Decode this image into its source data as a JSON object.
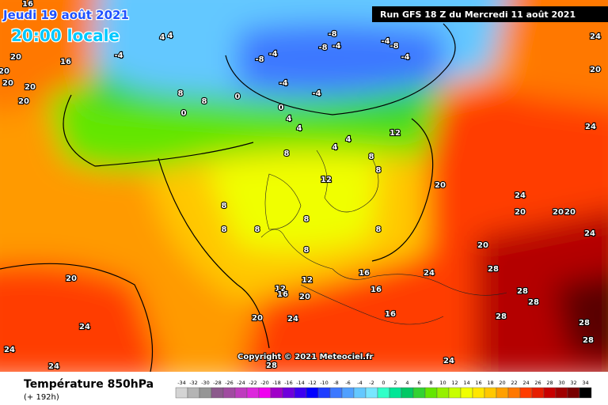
{
  "header": {
    "date": "Jeudi 19 août 2021",
    "time": "20:00 locale",
    "run": "Run GFS 18 Z du Mercredi 11 août 2021"
  },
  "footer": {
    "title": "Température 850hPa",
    "subtitle": "(+ 192h)",
    "copyright": "Copyright © 2021 Meteociel.fr"
  },
  "legend": {
    "values": [
      -34,
      -32,
      -30,
      -28,
      -26,
      -24,
      -22,
      -20,
      -18,
      -16,
      -14,
      -12,
      -10,
      -8,
      -6,
      -4,
      -2,
      0,
      2,
      4,
      6,
      8,
      10,
      12,
      14,
      16,
      18,
      20,
      22,
      24,
      26,
      28,
      30,
      32,
      34
    ],
    "colors": [
      "#d4d4d4",
      "#b4b4b4",
      "#969696",
      "#8c5a8c",
      "#a04ba0",
      "#be3cbe",
      "#dc28dc",
      "#f000f0",
      "#a000c8",
      "#6e00dc",
      "#3c00f0",
      "#0000ff",
      "#1e3cff",
      "#3c78ff",
      "#50a0ff",
      "#64c8ff",
      "#78e6ff",
      "#32ffc8",
      "#00e696",
      "#00c864",
      "#32d232",
      "#64e600",
      "#96f000",
      "#c8ff00",
      "#f0ff00",
      "#ffe600",
      "#ffc800",
      "#ffa000",
      "#ff7800",
      "#ff3c00",
      "#e61e00",
      "#c80000",
      "#a00000",
      "#780000",
      "#000000"
    ]
  },
  "contour_labels": [
    16,
    16,
    20,
    20,
    20,
    20,
    20,
    4,
    4,
    -4,
    -8,
    -4,
    -4,
    0,
    0,
    4,
    4,
    -8,
    -8,
    -4,
    -4,
    -8,
    -4,
    -4,
    8,
    8,
    0,
    8,
    4,
    4,
    12,
    8,
    12,
    8,
    8,
    8,
    8,
    8,
    8,
    8,
    12,
    16,
    16,
    16,
    20,
    20,
    24,
    24,
    28,
    28,
    28,
    28,
    28,
    28,
    28,
    24,
    20,
    24,
    20,
    20,
    24,
    24,
    20,
    24,
    20,
    24,
    24,
    20,
    24,
    20,
    20,
    12,
    16
  ]
}
